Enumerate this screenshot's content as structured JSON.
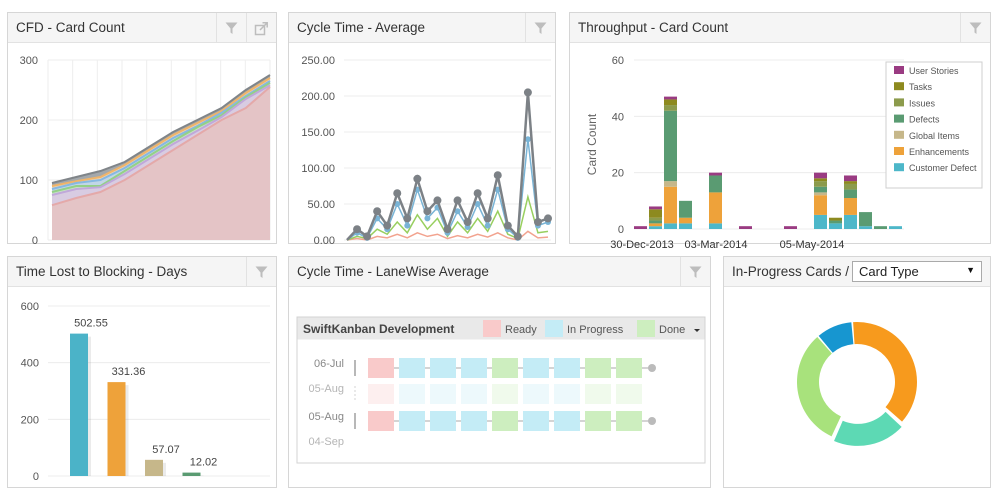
{
  "colors": {
    "pink": "#f9caca",
    "blue": "#c4ecf6",
    "green": "#cdeebf",
    "grey": "#7c8186",
    "user_stories": "#9a3b82",
    "tasks": "#8d8a1f",
    "issues": "#8c9b4c",
    "defects": "#5a9b72",
    "global_items": "#c6b78a",
    "enhancements": "#eea23a",
    "customer_defect": "#4db7c9",
    "donut_orange": "#f79a1d",
    "donut_teal": "#5dd9b4",
    "donut_green": "#a8e27c",
    "donut_blue": "#1796d0"
  },
  "widgets": {
    "cfd": {
      "title": "CFD - Card Count",
      "filter_icon": "filter-icon",
      "popout_icon": "popout-icon"
    },
    "cycle_avg": {
      "title": "Cycle Time - Average",
      "filter_icon": "filter-icon"
    },
    "throughput": {
      "title": "Throughput - Card Count",
      "filter_icon": "filter-icon"
    },
    "blocking": {
      "title": "Time Lost to Blocking - Days",
      "filter_icon": "filter-icon"
    },
    "lanewise": {
      "title": "Cycle Time - LaneWise Average",
      "filter_icon": "filter-icon"
    },
    "inprogress": {
      "title": "In-Progress Cards /",
      "select_value": "Card Type"
    }
  },
  "chart_data": [
    {
      "id": "cfd",
      "type": "area",
      "yticks": [
        "300",
        "200",
        "100",
        "0"
      ],
      "ylim": [
        0,
        300
      ],
      "series": [
        {
          "values": [
            58,
            70,
            80,
            100,
            125,
            150,
            175,
            200,
            220,
            255
          ]
        },
        {
          "values": [
            75,
            85,
            88,
            110,
            135,
            160,
            182,
            205,
            235,
            258
          ]
        },
        {
          "values": [
            80,
            90,
            90,
            115,
            140,
            165,
            188,
            208,
            238,
            262
          ]
        },
        {
          "values": [
            85,
            95,
            100,
            120,
            145,
            170,
            190,
            212,
            240,
            265
          ]
        },
        {
          "values": [
            90,
            98,
            105,
            125,
            150,
            175,
            195,
            215,
            245,
            270
          ]
        },
        {
          "values": [
            95,
            105,
            115,
            130,
            155,
            180,
            200,
            220,
            250,
            275
          ]
        }
      ]
    },
    {
      "id": "cycle_avg",
      "type": "line",
      "yticks": [
        "250.00",
        "200.00",
        "150.00",
        "100.00",
        "50.00",
        "0.00"
      ],
      "ylim": [
        0,
        250
      ],
      "series": [
        {
          "values": [
            0,
            15,
            5,
            40,
            20,
            65,
            30,
            85,
            40,
            55,
            15,
            55,
            25,
            65,
            30,
            90,
            20,
            5,
            205,
            25,
            30
          ]
        },
        {
          "values": [
            0,
            10,
            3,
            30,
            15,
            50,
            20,
            70,
            30,
            45,
            10,
            40,
            18,
            50,
            20,
            70,
            15,
            3,
            140,
            20,
            25
          ]
        },
        {
          "values": [
            0,
            5,
            2,
            15,
            8,
            25,
            10,
            35,
            15,
            30,
            5,
            25,
            10,
            30,
            12,
            40,
            8,
            2,
            60,
            10,
            12
          ]
        },
        {
          "values": [
            0,
            2,
            0,
            5,
            3,
            8,
            3,
            10,
            5,
            8,
            2,
            6,
            3,
            8,
            4,
            10,
            3,
            0,
            12,
            3,
            4
          ]
        }
      ]
    },
    {
      "id": "throughput",
      "type": "bar",
      "ylabel": "Card Count",
      "yticks": [
        "60",
        "40",
        "20",
        "0"
      ],
      "ylim": [
        0,
        60
      ],
      "xlabels": [
        "30-Dec-2013",
        "03-Mar-2014",
        "05-May-2014"
      ],
      "legend": [
        "User Stories",
        "Tasks",
        "Issues",
        "Defects",
        "Global Items",
        "Enhancements",
        "Customer Defect"
      ],
      "stacks": [
        [
          1,
          0,
          0,
          0,
          0,
          0,
          0
        ],
        [
          1,
          3,
          1,
          1,
          0,
          1,
          1
        ],
        [
          1,
          2,
          2,
          25,
          2,
          13,
          2
        ],
        [
          0,
          0,
          0,
          6,
          0,
          2,
          2
        ],
        [
          0,
          0,
          0,
          0,
          0,
          0,
          0
        ],
        [
          1,
          0,
          0,
          6,
          0,
          11,
          2
        ],
        [
          0,
          0,
          0,
          0,
          0,
          0,
          0
        ],
        [
          1,
          0,
          0,
          0,
          0,
          0,
          0
        ],
        [
          0,
          0,
          0,
          0,
          0,
          0,
          0
        ],
        [
          0,
          0,
          0,
          0,
          0,
          0,
          0
        ],
        [
          1,
          0,
          0,
          0,
          0,
          0,
          0
        ],
        [
          0,
          0,
          0,
          0,
          0,
          0,
          0
        ],
        [
          2,
          1,
          2,
          2,
          1,
          7,
          5
        ],
        [
          0,
          1,
          0,
          1,
          0,
          0,
          2
        ],
        [
          2,
          1,
          2,
          3,
          0,
          6,
          5
        ],
        [
          0,
          0,
          0,
          5,
          0,
          0,
          1
        ],
        [
          0,
          0,
          0,
          1,
          0,
          0,
          0
        ],
        [
          0,
          0,
          0,
          0,
          0,
          0,
          1
        ]
      ]
    },
    {
      "id": "blocking",
      "type": "bar",
      "yticks": [
        "600",
        "400",
        "200",
        "0"
      ],
      "ylim": [
        0,
        600
      ],
      "categories": [
        "",
        "",
        "",
        ""
      ],
      "values": [
        502.55,
        331.36,
        57.07,
        12.02
      ],
      "labels": [
        "502.55",
        "331.36",
        "57.07",
        "12.02"
      ],
      "bar_colors": [
        "#4bb3c8",
        "#eea23a",
        "#c6b78a",
        "#5a9b72"
      ]
    },
    {
      "id": "inprogress",
      "type": "pie",
      "values": [
        38,
        20,
        32,
        10
      ],
      "colors_order": [
        "donut_orange",
        "donut_teal",
        "donut_green",
        "donut_blue"
      ]
    }
  ],
  "lanewise": {
    "board": "SwiftKanban Development",
    "legend": [
      "Ready",
      "In Progress",
      "Done"
    ],
    "dates": [
      "06-Jul",
      "05-Aug",
      "05-Aug",
      "04-Sep"
    ]
  }
}
